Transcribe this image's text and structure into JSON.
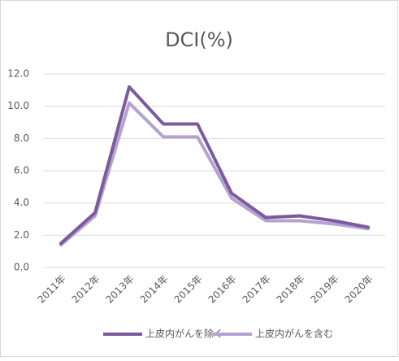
{
  "chart_data": {
    "type": "line",
    "title": "DCI(%)",
    "categories": [
      "2011年",
      "2012年",
      "2013年",
      "2014年",
      "2015年",
      "2016年",
      "2017年",
      "2018年",
      "2019年",
      "2020年"
    ],
    "series": [
      {
        "name": "上皮内がんを除く",
        "color": "#7b5a9e",
        "values": [
          1.5,
          3.4,
          11.2,
          8.9,
          8.9,
          4.6,
          3.1,
          3.2,
          2.9,
          2.5
        ]
      },
      {
        "name": "上皮内がんを含む",
        "color": "#b4a2cf",
        "values": [
          1.4,
          3.2,
          10.2,
          8.1,
          8.1,
          4.3,
          2.9,
          2.9,
          2.7,
          2.4
        ]
      }
    ],
    "ylim": [
      0,
      12
    ],
    "yticks": [
      {
        "value": 0,
        "label": "0.0"
      },
      {
        "value": 2,
        "label": "2.0"
      },
      {
        "value": 4,
        "label": "4.0"
      },
      {
        "value": 6,
        "label": "6.0"
      },
      {
        "value": 8,
        "label": "8.0"
      },
      {
        "value": 10,
        "label": "10.0"
      },
      {
        "value": 12,
        "label": "12.0"
      }
    ],
    "grid": true
  }
}
